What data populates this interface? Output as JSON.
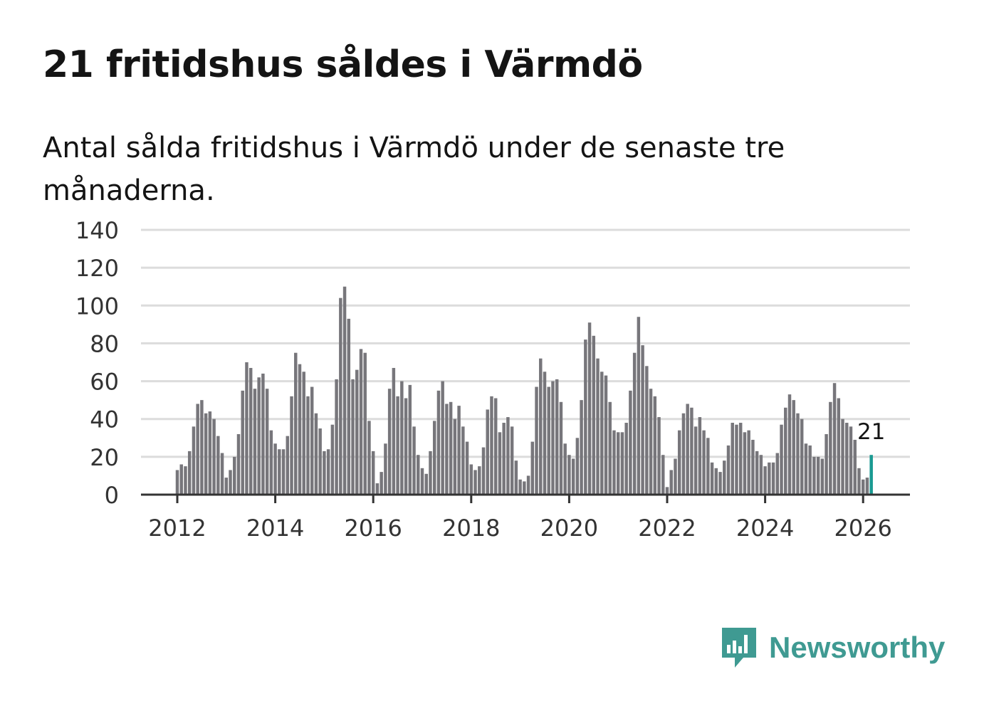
{
  "title": "21 fritidshus såldes i Värmdö",
  "subtitle": "Antal sålda fritidshus i Värmdö under de senaste tre månaderna.",
  "brand": {
    "name": "Newsworthy",
    "color": "#3f9a92",
    "icon": "newsworthy-logo-icon"
  },
  "colors": {
    "bar": "#77767b",
    "highlight": "#1a9a92",
    "grid": "#dcdcdc",
    "axis": "#333333"
  },
  "chart_data": {
    "type": "bar",
    "title": "Antal sålda fritidshus i Värmdö under de senaste tre månaderna.",
    "xlabel": "",
    "ylabel": "",
    "ylim": [
      0,
      140
    ],
    "yticks": [
      "0",
      "20",
      "40",
      "60",
      "80",
      "100",
      "120",
      "140"
    ],
    "xticks": [
      "2012",
      "2014",
      "2016",
      "2018",
      "2020",
      "2022",
      "2024",
      "2026"
    ],
    "x_start": "2012-01",
    "frequency": "monthly",
    "grid": true,
    "legend": "none",
    "highlight_last": true,
    "last_value_label": "21",
    "values": [
      13,
      16,
      15,
      23,
      36,
      48,
      50,
      43,
      44,
      40,
      31,
      22,
      9,
      13,
      20,
      32,
      55,
      70,
      67,
      56,
      62,
      64,
      56,
      34,
      27,
      24,
      24,
      31,
      52,
      75,
      69,
      65,
      52,
      57,
      43,
      35,
      23,
      24,
      37,
      61,
      104,
      110,
      93,
      61,
      66,
      77,
      75,
      39,
      23,
      6,
      12,
      27,
      56,
      67,
      52,
      60,
      51,
      58,
      36,
      21,
      14,
      11,
      23,
      39,
      55,
      60,
      48,
      49,
      40,
      47,
      36,
      28,
      16,
      13,
      15,
      25,
      45,
      52,
      51,
      33,
      38,
      41,
      36,
      18,
      8,
      7,
      10,
      28,
      57,
      72,
      65,
      57,
      60,
      61,
      49,
      27,
      21,
      19,
      30,
      50,
      82,
      91,
      84,
      72,
      65,
      63,
      49,
      34,
      33,
      33,
      38,
      55,
      75,
      94,
      79,
      68,
      56,
      52,
      41,
      21,
      4,
      13,
      19,
      34,
      43,
      48,
      46,
      36,
      41,
      34,
      30,
      17,
      14,
      12,
      18,
      26,
      38,
      37,
      38,
      33,
      34,
      29,
      23,
      21,
      15,
      17,
      17,
      22,
      37,
      46,
      53,
      50,
      43,
      40,
      27,
      26,
      20,
      20,
      19,
      32,
      49,
      59,
      51,
      40,
      38,
      36,
      29,
      14,
      8,
      9,
      21
    ]
  }
}
